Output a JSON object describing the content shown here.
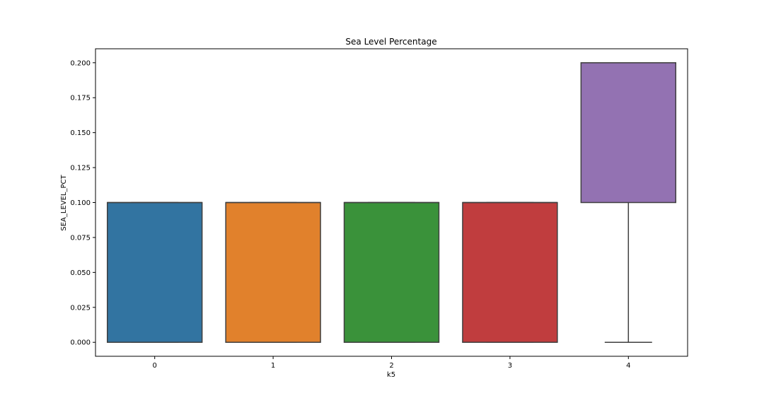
{
  "chart_data": {
    "type": "box",
    "title": "Sea Level Percentage",
    "xlabel": "k5",
    "ylabel": "SEA_LEVEL_PCT",
    "categories": [
      "0",
      "1",
      "2",
      "3",
      "4"
    ],
    "boxes": [
      {
        "category": "0",
        "whisker_low": 0.0,
        "q1": 0.0,
        "median": 0.1,
        "q3": 0.1,
        "whisker_high": 0.1,
        "color": "#3274a1"
      },
      {
        "category": "1",
        "whisker_low": 0.0,
        "q1": 0.0,
        "median": 0.1,
        "q3": 0.1,
        "whisker_high": 0.1,
        "color": "#e1812c"
      },
      {
        "category": "2",
        "whisker_low": 0.0,
        "q1": 0.0,
        "median": 0.1,
        "q3": 0.1,
        "whisker_high": 0.1,
        "color": "#3a923a"
      },
      {
        "category": "3",
        "whisker_low": 0.0,
        "q1": 0.0,
        "median": 0.1,
        "q3": 0.1,
        "whisker_high": 0.1,
        "color": "#c03d3e"
      },
      {
        "category": "4",
        "whisker_low": 0.0,
        "q1": 0.1,
        "median": 0.2,
        "q3": 0.2,
        "whisker_high": 0.2,
        "color": "#9372b2"
      }
    ],
    "yticks": [
      "0.000",
      "0.025",
      "0.050",
      "0.075",
      "0.100",
      "0.125",
      "0.150",
      "0.175",
      "0.200"
    ],
    "ylim": [
      -0.01,
      0.21
    ],
    "grid": false,
    "legend": "none"
  }
}
